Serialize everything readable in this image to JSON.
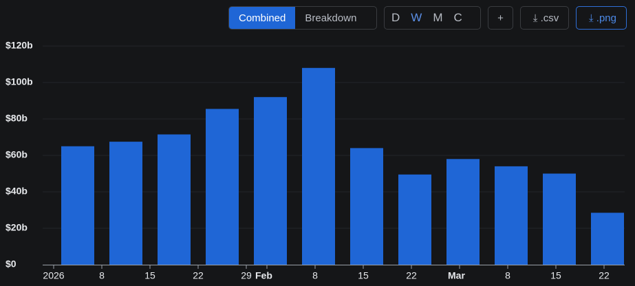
{
  "toolbar": {
    "view": [
      "Combined",
      "Breakdown"
    ],
    "periods": [
      "D",
      "W",
      "M",
      "C"
    ],
    "add": "+",
    "exports": [
      ".csv",
      ".png"
    ]
  },
  "chart_data": {
    "type": "bar",
    "color": "#1f66d6",
    "x": [
      "2026-01-01",
      "2026-01-08",
      "2026-01-15",
      "2026-01-22",
      "2026-01-29",
      "2026-02-05",
      "2026-02-12",
      "2026-02-19",
      "2026-02-26",
      "2026-03-05",
      "2026-03-12",
      "2026-03-19"
    ],
    "values": [
      65,
      67.5,
      71.5,
      85.5,
      92,
      108,
      64,
      49.5,
      58,
      54,
      50,
      28.5
    ],
    "xlim": [
      "2026-01-01",
      "2026-03-25"
    ],
    "xticks": [
      {
        "value": "2026-01-01",
        "label": "2026"
      },
      {
        "value": "2026-01-08",
        "label": "8"
      },
      {
        "value": "2026-01-15",
        "label": "15"
      },
      {
        "value": "2026-01-22",
        "label": "22"
      },
      {
        "value": "2026-01-29",
        "label": "29"
      },
      {
        "value": "2026-02-01",
        "label": "Feb"
      },
      {
        "value": "2026-02-08",
        "label": "8"
      },
      {
        "value": "2026-02-15",
        "label": "15"
      },
      {
        "value": "2026-02-22",
        "label": "22"
      },
      {
        "value": "2026-03-01",
        "label": "Mar"
      },
      {
        "value": "2026-03-08",
        "label": "8"
      },
      {
        "value": "2026-03-15",
        "label": "15"
      },
      {
        "value": "2026-03-22",
        "label": "22"
      }
    ],
    "ylim": [
      0,
      120
    ],
    "yticks": [
      {
        "value": 0,
        "label": "$0"
      },
      {
        "value": 20,
        "label": "$20b"
      },
      {
        "value": 40,
        "label": "$40b"
      },
      {
        "value": 60,
        "label": "$60b"
      },
      {
        "value": 80,
        "label": "$80b"
      },
      {
        "value": 100,
        "label": "$100b"
      },
      {
        "value": 120,
        "label": "$120b"
      }
    ],
    "grid": true
  }
}
